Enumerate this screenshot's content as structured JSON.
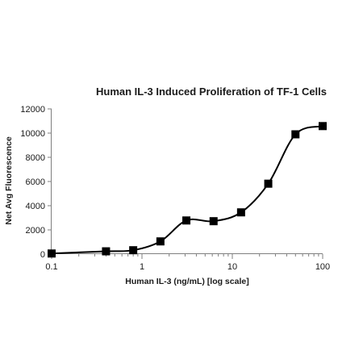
{
  "chart_data": {
    "type": "line",
    "title": "Human IL-3 Induced Proliferation of TF-1 Cells",
    "xlabel": "Human IL-3 (ng/mL) [log scale]",
    "ylabel": "Net Avg Fluorescence",
    "x_scale": "log",
    "xlim": [
      0.1,
      100
    ],
    "ylim": [
      0,
      12000
    ],
    "x_ticks": [
      0.1,
      1,
      10,
      100
    ],
    "x_tick_labels": [
      "0.1",
      "1",
      "10",
      "100"
    ],
    "y_ticks": [
      0,
      2000,
      4000,
      6000,
      8000,
      10000,
      12000
    ],
    "y_tick_labels": [
      "0",
      "2000",
      "4000",
      "6000",
      "8000",
      "10000",
      "12000"
    ],
    "grid": false,
    "legend": false,
    "series": [
      {
        "marker": "square",
        "color": "#000000",
        "x": [
          0.1,
          0.4,
          0.8,
          1.6,
          3.1,
          6.2,
          12.5,
          25,
          50,
          100
        ],
        "y": [
          50,
          230,
          320,
          1050,
          2780,
          2720,
          3450,
          5820,
          9900,
          10580
        ]
      }
    ]
  }
}
